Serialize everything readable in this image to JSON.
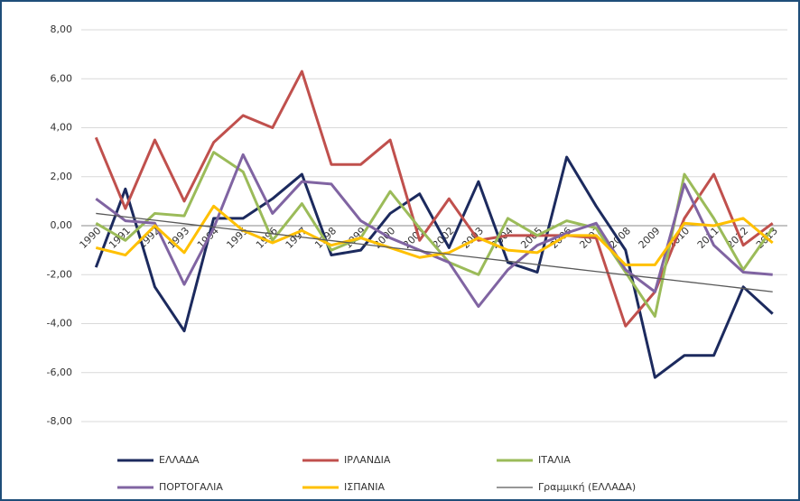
{
  "chart_data": {
    "type": "line",
    "categories": [
      "1990",
      "1991",
      "1992",
      "1993",
      "1994",
      "1995",
      "1996",
      "1997",
      "1998",
      "1999",
      "2000",
      "2001",
      "2002",
      "2003",
      "2004",
      "2005",
      "2006",
      "2007",
      "2008",
      "2009",
      "2010",
      "2011",
      "2012",
      "2013"
    ],
    "series": [
      {
        "name": "ΕΛΛΑΔΑ",
        "color": "#1c2a5e",
        "values": [
          -1.7,
          1.5,
          -2.5,
          -4.3,
          0.3,
          0.3,
          1.1,
          2.1,
          -1.2,
          -1.0,
          0.5,
          1.3,
          -0.9,
          1.8,
          -1.5,
          -1.9,
          2.8,
          0.8,
          -1.0,
          -6.2,
          -5.3,
          -5.3,
          -2.5,
          -3.6
        ]
      },
      {
        "name": "ΙΡΛΑΝΔΙΑ",
        "color": "#c0504d",
        "values": [
          3.6,
          0.7,
          3.5,
          1.0,
          3.4,
          4.5,
          4.0,
          6.3,
          2.5,
          2.5,
          3.5,
          -0.6,
          1.1,
          -0.6,
          -0.4,
          -0.4,
          -0.4,
          -0.5,
          -4.1,
          -2.7,
          0.3,
          2.1,
          -0.8,
          0.1
        ]
      },
      {
        "name": "ΙΤΑΛΙΑ",
        "color": "#9bbb59",
        "values": [
          0.1,
          -0.6,
          0.5,
          0.4,
          3.0,
          2.2,
          -0.6,
          0.9,
          -1.0,
          -0.5,
          1.4,
          -0.1,
          -1.5,
          -2.0,
          0.3,
          -0.4,
          0.2,
          -0.1,
          -1.9,
          -3.7,
          2.1,
          0.3,
          -1.8,
          -0.1
        ]
      },
      {
        "name": "ΠΟΡΤΟΓΑΛΙΑ",
        "color": "#8064a2",
        "values": [
          1.1,
          0.2,
          0.1,
          -2.4,
          -0.1,
          2.9,
          0.5,
          1.8,
          1.7,
          0.2,
          -0.5,
          -1.0,
          -1.5,
          -3.3,
          -1.8,
          -0.8,
          -0.3,
          0.1,
          -1.8,
          -2.7,
          1.7,
          -0.8,
          -1.9,
          -2.0
        ]
      },
      {
        "name": "ΙΣΠΑΝΙΑ",
        "color": "#ffc000",
        "values": [
          -0.9,
          -1.2,
          0.0,
          -1.1,
          0.8,
          -0.2,
          -0.7,
          -0.2,
          -0.8,
          -0.5,
          -0.9,
          -1.3,
          -1.1,
          -0.5,
          -1.0,
          -1.1,
          -0.4,
          -0.4,
          -1.6,
          -1.6,
          0.1,
          0.0,
          0.3,
          -0.7
        ]
      },
      {
        "name": "Γραμμική (ΕΛΛΑΔΑ)",
        "color": "#595959",
        "values": [
          0.5,
          0.36,
          0.22,
          0.08,
          -0.06,
          -0.2,
          -0.33,
          -0.47,
          -0.61,
          -0.75,
          -0.89,
          -1.03,
          -1.17,
          -1.31,
          -1.45,
          -1.59,
          -1.73,
          -1.87,
          -2.01,
          -2.14,
          -2.28,
          -2.42,
          -2.56,
          -2.7
        ]
      }
    ],
    "ylim": [
      -8,
      8
    ],
    "yticks": [
      {
        "value": -8,
        "label": "-8,00"
      },
      {
        "value": -6,
        "label": "-6,00"
      },
      {
        "value": -4,
        "label": "-4,00"
      },
      {
        "value": -2,
        "label": "-2,00"
      },
      {
        "value": 0,
        "label": "0,00"
      },
      {
        "value": 2,
        "label": "2,00"
      },
      {
        "value": 4,
        "label": "4,00"
      },
      {
        "value": 6,
        "label": "6,00"
      },
      {
        "value": 8,
        "label": "8,00"
      }
    ],
    "grid": true
  }
}
